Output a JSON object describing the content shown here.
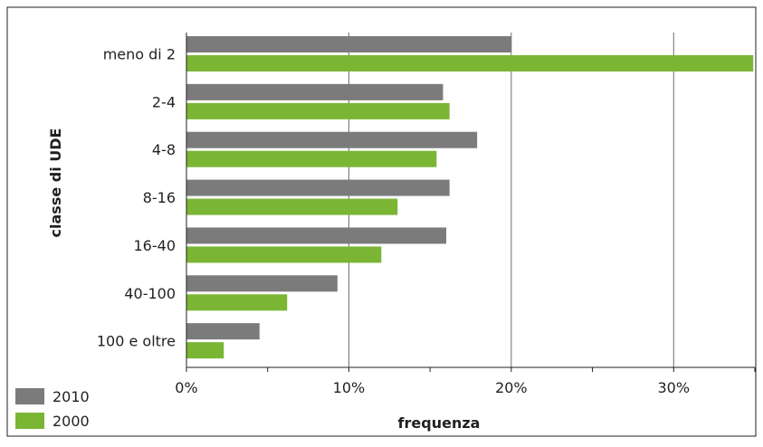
{
  "chart_data": {
    "type": "bar",
    "orientation": "horizontal",
    "title": "",
    "xlabel": "frequenza",
    "ylabel": "classe di UDE",
    "categories": [
      "meno di 2",
      "2-4",
      "4-8",
      "8-16",
      "16-40",
      "40-100",
      "100 e oltre"
    ],
    "series": [
      {
        "name": "2010",
        "values": [
          20.0,
          15.8,
          17.9,
          16.2,
          16.0,
          9.3,
          4.5
        ]
      },
      {
        "name": "2000",
        "values": [
          34.9,
          16.2,
          15.4,
          13.0,
          12.0,
          6.2,
          2.3
        ]
      }
    ],
    "xlim": [
      0,
      35
    ],
    "xticks": [
      "0%",
      "10%",
      "20%",
      "30%"
    ],
    "grid": true,
    "legend": "bottom-left",
    "colors": {
      "2010": "#7b7b7b",
      "2000": "#7ab534"
    }
  }
}
